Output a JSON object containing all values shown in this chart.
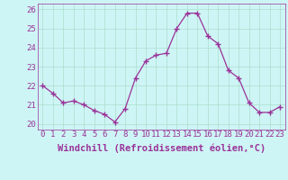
{
  "x": [
    0,
    1,
    2,
    3,
    4,
    5,
    6,
    7,
    8,
    9,
    10,
    11,
    12,
    13,
    14,
    15,
    16,
    17,
    18,
    19,
    20,
    21,
    22,
    23
  ],
  "y": [
    22.0,
    21.6,
    21.1,
    21.2,
    21.0,
    20.7,
    20.5,
    20.1,
    20.8,
    22.4,
    23.3,
    23.6,
    23.7,
    25.0,
    25.8,
    25.8,
    24.6,
    24.2,
    22.8,
    22.4,
    21.1,
    20.6,
    20.6,
    20.9
  ],
  "line_color": "#993399",
  "marker": "+",
  "marker_size": 4,
  "marker_linewidth": 1.0,
  "bg_color": "#cef5f5",
  "grid_color": "#aaddcc",
  "xlabel": "Windchill (Refroidissement éolien,°C)",
  "xlabel_fontsize": 7.5,
  "xlabel_color": "#993399",
  "xtick_labels": [
    "0",
    "1",
    "2",
    "3",
    "4",
    "5",
    "6",
    "7",
    "8",
    "9",
    "10",
    "11",
    "12",
    "13",
    "14",
    "15",
    "16",
    "17",
    "18",
    "19",
    "20",
    "21",
    "22",
    "23"
  ],
  "ytick_labels": [
    "20",
    "21",
    "22",
    "23",
    "24",
    "25",
    "26"
  ],
  "ylim": [
    19.7,
    26.3
  ],
  "xlim": [
    -0.5,
    23.5
  ],
  "tick_fontsize": 6.5,
  "tick_color": "#993399",
  "spine_color": "#993399"
}
